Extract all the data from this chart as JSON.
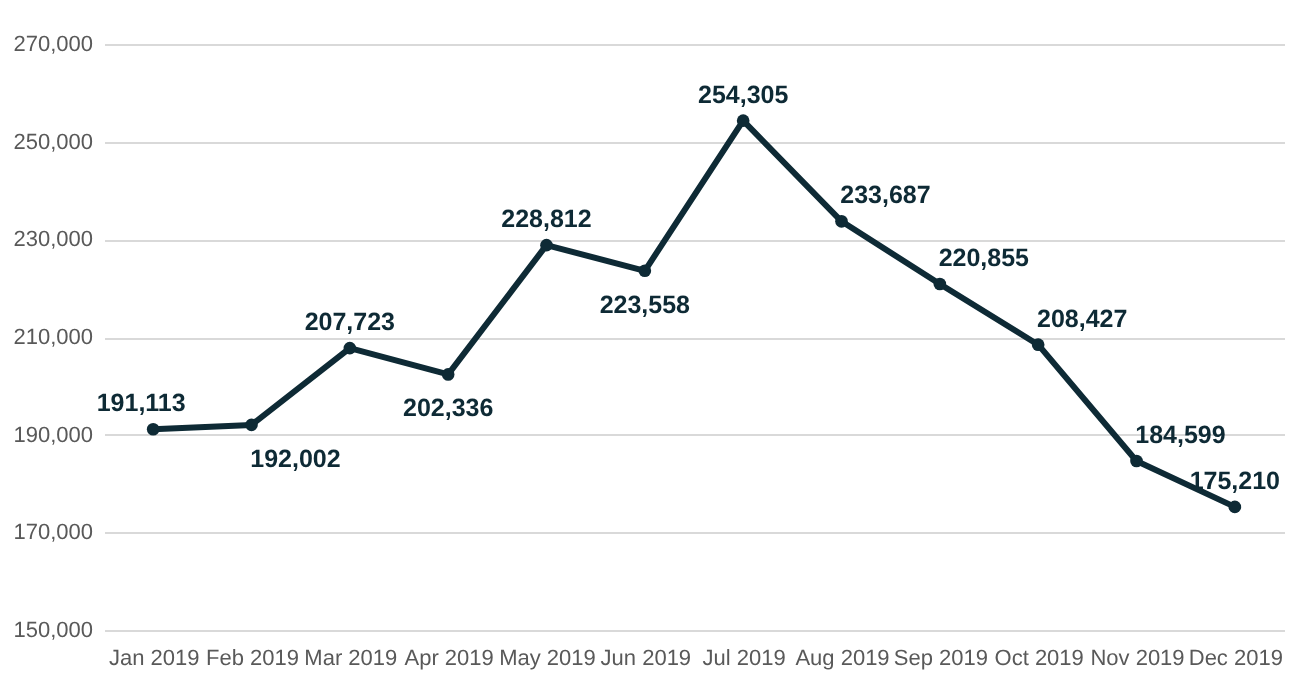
{
  "chart_data": {
    "type": "line",
    "categories": [
      "Jan 2019",
      "Feb 2019",
      "Mar 2019",
      "Apr 2019",
      "May 2019",
      "Jun 2019",
      "Jul 2019",
      "Aug 2019",
      "Sep 2019",
      "Oct 2019",
      "Nov 2019",
      "Dec 2019"
    ],
    "series": [
      {
        "color": "#0e2a35",
        "values": [
          191113,
          192002,
          207723,
          202336,
          228812,
          223558,
          254305,
          233687,
          220855,
          208427,
          184599,
          175210
        ],
        "value_labels": [
          "191,113",
          "192,002",
          "207,723",
          "202,336",
          "228,812",
          "223,558",
          "254,305",
          "233,687",
          "220,855",
          "208,427",
          "184,599",
          "175,210"
        ]
      }
    ],
    "ylim": [
      150000,
      270000
    ],
    "yticks": [
      {
        "value": 150000,
        "label": "150,000"
      },
      {
        "value": 170000,
        "label": "170,000"
      },
      {
        "value": 190000,
        "label": "190,000"
      },
      {
        "value": 210000,
        "label": "210,000"
      },
      {
        "value": 230000,
        "label": "230,000"
      },
      {
        "value": 250000,
        "label": "250,000"
      },
      {
        "value": 270000,
        "label": "270,000"
      }
    ],
    "grid": "y",
    "marker": "circle",
    "line_style": "solid",
    "legend": false
  }
}
